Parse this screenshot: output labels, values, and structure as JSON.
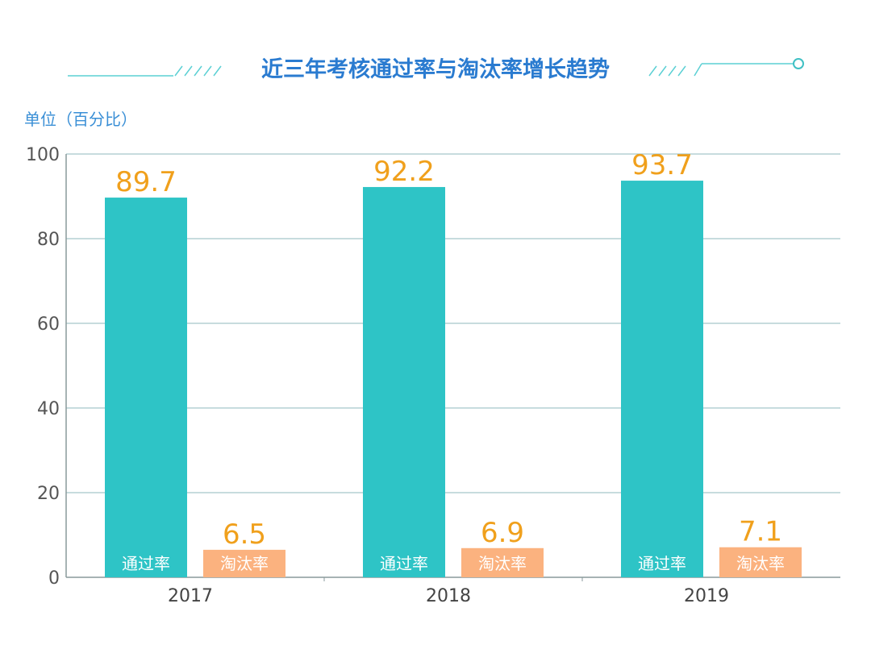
{
  "chart_data": {
    "type": "bar",
    "title": "近三年考核通过率与淘汰率增长趋势",
    "ylabel": "单位（百分比）",
    "xlabel": "",
    "categories": [
      "2017",
      "2018",
      "2019"
    ],
    "series": [
      {
        "name": "通过率",
        "values": [
          89.7,
          92.2,
          93.7
        ],
        "color": "#2ec4c6"
      },
      {
        "name": "淘汰率",
        "values": [
          6.5,
          6.9,
          7.1
        ],
        "color": "#fbb27f"
      }
    ],
    "ylim": [
      0,
      100
    ],
    "yticks": [
      0,
      20,
      40,
      60,
      80,
      100
    ],
    "grid": true,
    "legend": "none",
    "value_label_color": "#f0a01c",
    "accent_color": "#2a7bd0"
  }
}
